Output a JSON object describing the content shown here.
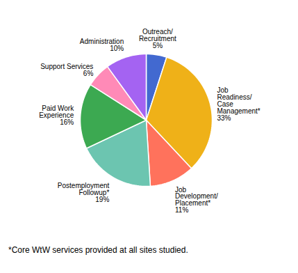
{
  "chart_data": {
    "type": "pie",
    "categories": [
      "Outreach/\nRecruitment",
      "Job\nReadiness/\nCase\nManagement*",
      "Job\nDevelopment/\nPlacement*",
      "Postemployment\nFollowup*",
      "Paid Work\nExperience",
      "Support Services",
      "Administration"
    ],
    "values": [
      5,
      33,
      11,
      19,
      16,
      6,
      10
    ],
    "value_labels": [
      "5%",
      "33%",
      "11%",
      "19%",
      "16%",
      "6%",
      "10%"
    ],
    "data_labels": true,
    "caption": "*Core WtW services provided at all sites studied."
  }
}
